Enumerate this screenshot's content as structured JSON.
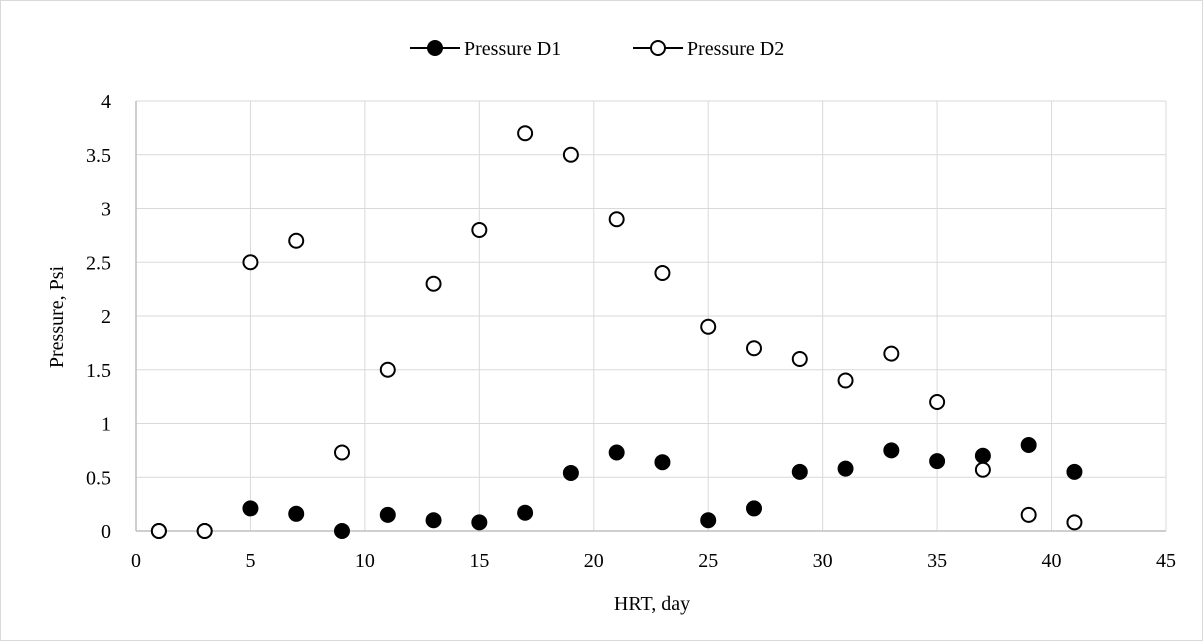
{
  "chart_data": {
    "type": "scatter",
    "title": "",
    "xlabel": "HRT, day",
    "ylabel": "Pressure, Psi",
    "xlim": [
      0,
      45
    ],
    "ylim": [
      0,
      4
    ],
    "xticks": [
      0,
      5,
      10,
      15,
      20,
      25,
      30,
      35,
      40,
      45
    ],
    "yticks": [
      0,
      0.5,
      1,
      1.5,
      2,
      2.5,
      3,
      3.5,
      4
    ],
    "grid": true,
    "legend_position": "top",
    "series": [
      {
        "name": "Pressure D1",
        "marker": "filled-circle",
        "color": "#000000",
        "x": [
          1,
          3,
          5,
          7,
          9,
          11,
          13,
          15,
          17,
          19,
          21,
          23,
          25,
          27,
          29,
          31,
          33,
          35,
          37,
          39,
          41
        ],
        "y": [
          0,
          0,
          0.21,
          0.16,
          0,
          0.15,
          0.1,
          0.08,
          0.17,
          0.54,
          0.73,
          0.64,
          0.1,
          0.21,
          0.55,
          0.58,
          0.75,
          0.65,
          0.7,
          0.8,
          0.55
        ]
      },
      {
        "name": "Pressure D2",
        "marker": "open-circle",
        "color": "#000000",
        "x": [
          1,
          3,
          5,
          7,
          9,
          11,
          13,
          15,
          17,
          19,
          21,
          23,
          25,
          27,
          29,
          31,
          33,
          35,
          37,
          39,
          41
        ],
        "y": [
          0,
          0,
          2.5,
          2.7,
          0.73,
          1.5,
          2.3,
          2.8,
          3.7,
          3.5,
          2.9,
          2.4,
          1.9,
          1.7,
          1.6,
          1.4,
          1.65,
          1.2,
          0.57,
          0.15,
          0.08
        ]
      }
    ]
  }
}
